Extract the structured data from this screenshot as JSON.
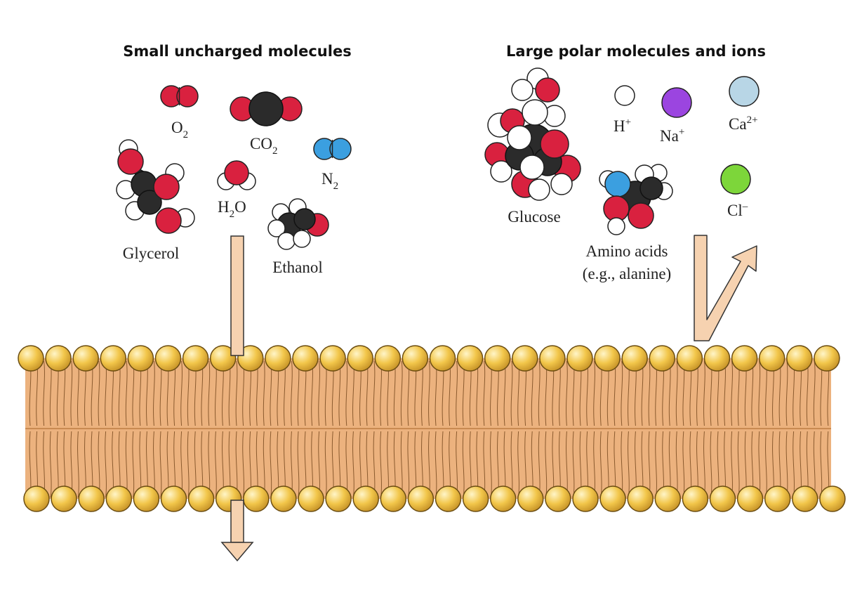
{
  "titles": {
    "left": "Small uncharged molecules",
    "right": "Large polar molecules and ions"
  },
  "molecules": {
    "o2": {
      "base": "O",
      "sub": "2"
    },
    "co2": {
      "base": "CO",
      "sub": "2"
    },
    "n2": {
      "base": "N",
      "sub": "2"
    },
    "h2o": {
      "base": "H",
      "sub": "2",
      "tail": "O"
    },
    "glycerol": "Glycerol",
    "ethanol": "Ethanol",
    "glucose": "Glucose",
    "amino_line1": "Amino acids",
    "amino_line2": "(e.g., alanine)"
  },
  "ions": {
    "h": {
      "base": "H",
      "sup": "+"
    },
    "na": {
      "base": "Na",
      "sup": "+"
    },
    "ca": {
      "base": "Ca",
      "sup": "2+"
    },
    "cl": {
      "base": "Cl",
      "sup": "–"
    }
  },
  "colors": {
    "oxygen": "#d9213f",
    "carbon": "#2b2b2b",
    "hydrogen": "#ffffff",
    "nitrogen": "#3b9fe0",
    "sodium": "#9b45e0",
    "calcium": "#b8d6e6",
    "chloride": "#7dd63a",
    "lipid_head": "#f2c64a",
    "membrane": "#ecb27e",
    "arrow": "#f6d2b0"
  }
}
